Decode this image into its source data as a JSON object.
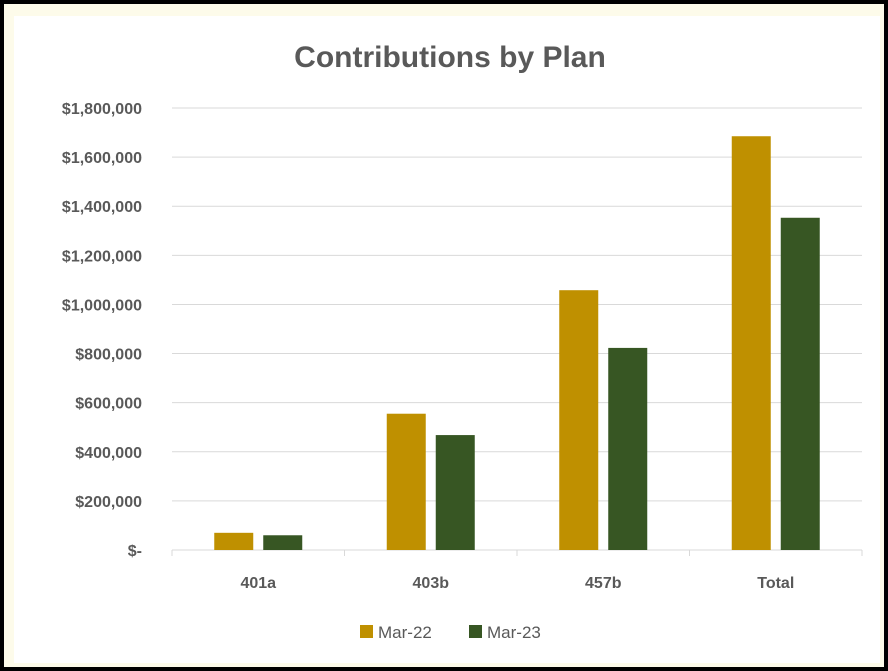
{
  "chart_data": {
    "type": "bar",
    "title": "Contributions by Plan",
    "categories": [
      "401a",
      "403b",
      "457b",
      "Total"
    ],
    "series": [
      {
        "name": "Mar-22",
        "color": "#bf9000",
        "values": [
          70000,
          555000,
          1058000,
          1685000
        ]
      },
      {
        "name": "Mar-23",
        "color": "#375623",
        "values": [
          60000,
          468000,
          823000,
          1353000
        ]
      }
    ],
    "ylim": [
      0,
      1800000
    ],
    "yticks": [
      0,
      200000,
      400000,
      600000,
      800000,
      1000000,
      1200000,
      1400000,
      1600000,
      1800000
    ],
    "ytick_labels": [
      "$-",
      "$200,000",
      "$400,000",
      "$600,000",
      "$800,000",
      "$1,000,000",
      "$1,200,000",
      "$1,400,000",
      "$1,600,000",
      "$1,800,000"
    ],
    "grid": true,
    "legend": "bottom"
  }
}
